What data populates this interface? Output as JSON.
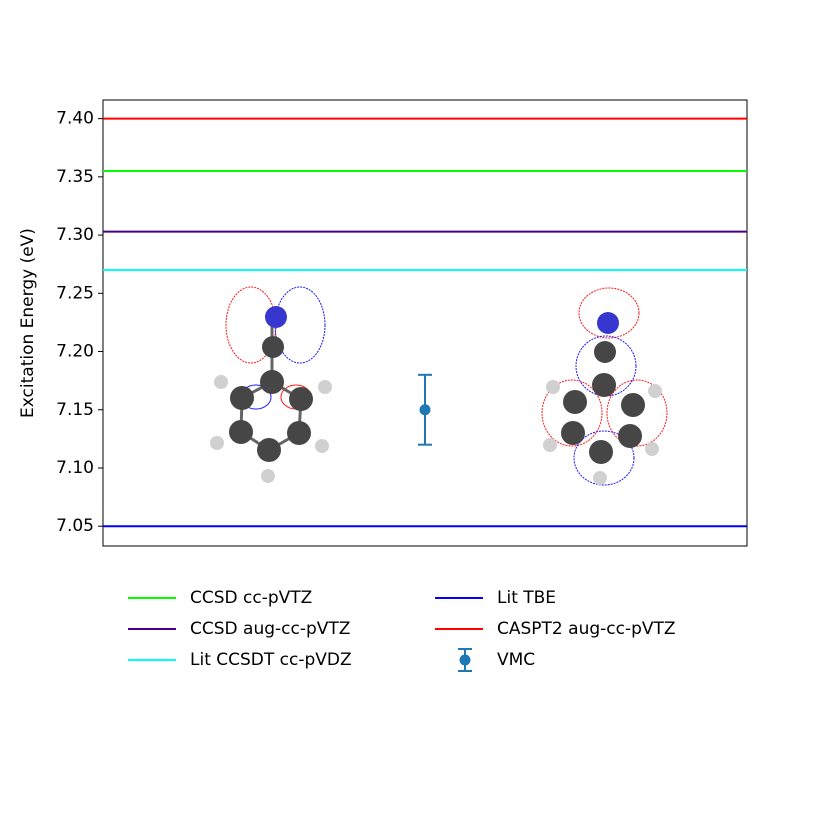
{
  "chart_data": {
    "type": "line",
    "ylabel": "Excitation Energy (eV)",
    "ylim": [
      7.033,
      7.416
    ],
    "yticks": [
      {
        "value": 7.05,
        "label": "7.05"
      },
      {
        "value": 7.1,
        "label": "7.10"
      },
      {
        "value": 7.15,
        "label": "7.15"
      },
      {
        "value": 7.2,
        "label": "7.20"
      },
      {
        "value": 7.25,
        "label": "7.25"
      },
      {
        "value": 7.3,
        "label": "7.30"
      },
      {
        "value": 7.35,
        "label": "7.35"
      },
      {
        "value": 7.4,
        "label": "7.40"
      }
    ],
    "series": [
      {
        "name": "CCSD cc-pVTZ",
        "color": "#00ff00",
        "values": [
          7.355
        ]
      },
      {
        "name": "CCSD aug-cc-pVTZ",
        "color": "#4b0082",
        "values": [
          7.303
        ]
      },
      {
        "name": "Lit CCSDT cc-pVDZ",
        "color": "#00ffff",
        "values": [
          7.27
        ]
      },
      {
        "name": "Lit TBE",
        "color": "#0000ff",
        "values": [
          7.05
        ]
      },
      {
        "name": "CASPT2 aug-cc-pVTZ",
        "color": "#ff0000",
        "values": [
          7.4
        ]
      },
      {
        "name": "VMC",
        "color": "#1f77b4",
        "values": [
          7.15
        ],
        "errors": [
          0.03
        ],
        "marker": "errorbar"
      }
    ]
  }
}
